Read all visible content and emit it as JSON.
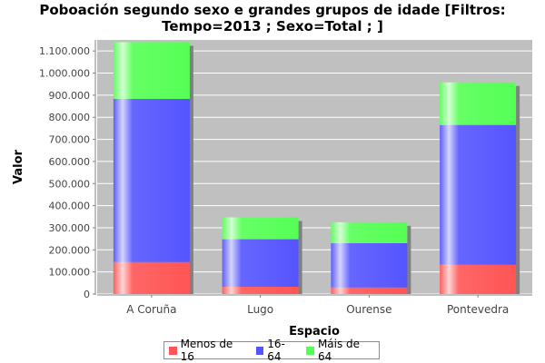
{
  "colors": {
    "plot_background": "#c0c0c0",
    "gridline": "#ffffff",
    "shadow": "#808080"
  },
  "chart_data": {
    "type": "bar",
    "stacked": true,
    "title": "Poboación segundo sexo e grandes grupos de idade   [Filtros:\nTempo=2013 ; Sexo=Total ; ]",
    "xlabel": "Espacio",
    "ylabel": "Valor",
    "categories": [
      "A Coruña",
      "Lugo",
      "Ourense",
      "Pontevedra"
    ],
    "series": [
      {
        "name": "Menos de 16",
        "color": "#ff5555",
        "values": [
          145000,
          33000,
          30000,
          133000
        ]
      },
      {
        "name": "16-64",
        "color": "#5555ff",
        "values": [
          738000,
          215000,
          200000,
          632000
        ]
      },
      {
        "name": "Máis de 64",
        "color": "#55ff55",
        "values": [
          257000,
          99000,
          95000,
          193000
        ]
      }
    ],
    "ylim": [
      0,
      1150000
    ],
    "yticks": [
      0,
      100000,
      200000,
      300000,
      400000,
      500000,
      600000,
      700000,
      800000,
      900000,
      1000000,
      1100000
    ],
    "ytick_labels": [
      "0",
      "100.000",
      "200.000",
      "300.000",
      "400.000",
      "500.000",
      "600.000",
      "700.000",
      "800.000",
      "900.000",
      "1.000.000",
      "1.100.000"
    ],
    "grid": true,
    "legend_position": "bottom"
  }
}
